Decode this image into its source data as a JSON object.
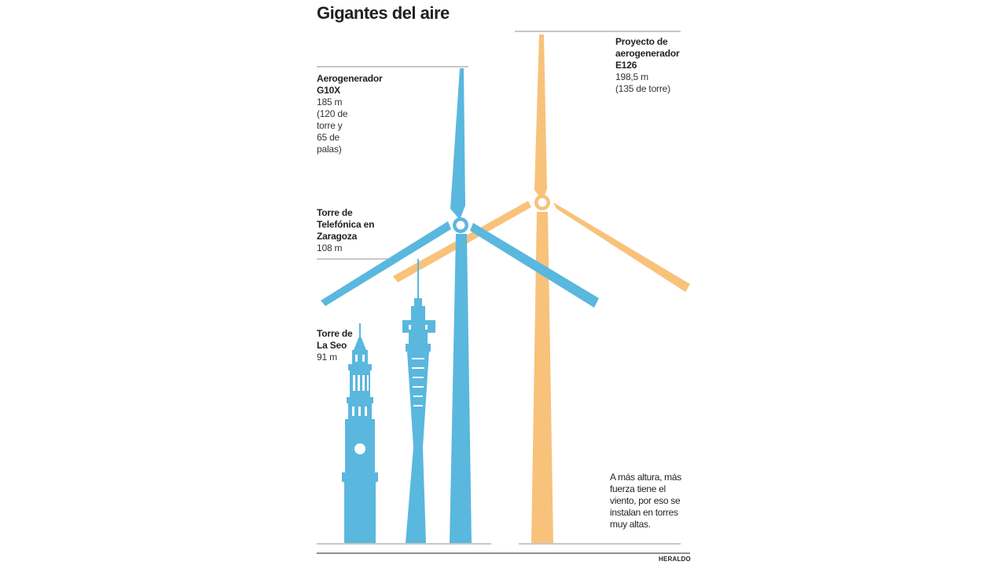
{
  "title": "Gigantes del aire",
  "colors": {
    "blue": "#5ab7de",
    "orange": "#f8c27a",
    "rule": "#b5b5b5"
  },
  "items": [
    {
      "id": "e126",
      "name": "Proyecto de aerogenerador E126",
      "height": "198,5 m",
      "detail": "(135 de torre)",
      "height_m": 198.5,
      "color": "orange"
    },
    {
      "id": "g10x",
      "name": "Aerogenerador G10X",
      "height": "185 m",
      "detail": "(120 de torre y 65 de palas)",
      "height_m": 185,
      "color": "blue"
    },
    {
      "id": "telefonica",
      "name": "Torre de Telefónica en Zaragoza",
      "height": "108 m",
      "detail": "",
      "height_m": 108,
      "color": "blue"
    },
    {
      "id": "seo",
      "name": "Torre de La Seo",
      "height": "91 m",
      "detail": "",
      "height_m": 91,
      "color": "blue"
    }
  ],
  "note": "A más altura, más fuerza tiene el viento, por eso se instalan en torres muy altas.",
  "credit": "HERALDO"
}
